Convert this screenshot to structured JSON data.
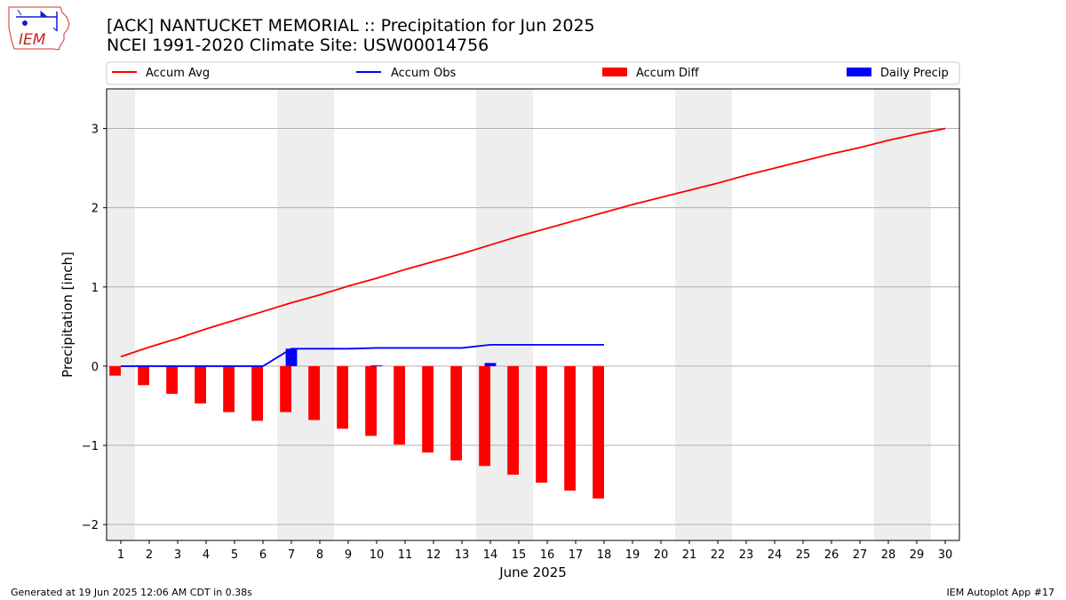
{
  "header": {
    "title_line1": "[ACK] NANTUCKET MEMORIAL :: Precipitation for Jun 2025",
    "title_line2": "NCEI 1991-2020 Climate Site: USW00014756"
  },
  "logo": {
    "text": "IEM",
    "icon": "iem-iowa-map-logo"
  },
  "footer": {
    "left": "Generated at 19 Jun 2025 12:06 AM CDT in 0.38s",
    "right": "IEM Autoplot App #17"
  },
  "colors": {
    "avg": "#ff0000",
    "obs": "#0000ff",
    "diff": "#ff0000",
    "daily": "#0000ff",
    "weekend": "#eeeeee",
    "grid": "#b0b0b0"
  },
  "chart_data": {
    "type": "bar",
    "xlabel": "June 2025",
    "ylabel": "Precipitation [inch]",
    "xlim": [
      0.5,
      30.5
    ],
    "ylim": [
      -2.2,
      3.5
    ],
    "yticks": [
      -2,
      -1,
      0,
      1,
      2,
      3
    ],
    "ytick_labels": [
      "−2",
      "−1",
      "0",
      "1",
      "2",
      "3"
    ],
    "grid": "y",
    "legend_position": "top",
    "legend": [
      "Accum Avg",
      "Accum Obs",
      "Accum Diff",
      "Daily Precip"
    ],
    "weekend_days": [
      1,
      7,
      8,
      14,
      15,
      21,
      22,
      28,
      29
    ],
    "x": [
      1,
      2,
      3,
      4,
      5,
      6,
      7,
      8,
      9,
      10,
      11,
      12,
      13,
      14,
      15,
      16,
      17,
      18,
      19,
      20,
      21,
      22,
      23,
      24,
      25,
      26,
      27,
      28,
      29,
      30
    ],
    "series": [
      {
        "name": "Accum Avg",
        "kind": "line",
        "color": "#ff0000",
        "x": [
          1,
          2,
          3,
          4,
          5,
          6,
          7,
          8,
          9,
          10,
          11,
          12,
          13,
          14,
          15,
          16,
          17,
          18,
          19,
          20,
          21,
          22,
          23,
          24,
          25,
          26,
          27,
          28,
          29,
          30
        ],
        "values": [
          0.12,
          0.24,
          0.35,
          0.47,
          0.58,
          0.69,
          0.8,
          0.9,
          1.01,
          1.11,
          1.22,
          1.32,
          1.42,
          1.53,
          1.64,
          1.74,
          1.84,
          1.94,
          2.04,
          2.13,
          2.22,
          2.31,
          2.41,
          2.5,
          2.59,
          2.68,
          2.76,
          2.85,
          2.93,
          3.0
        ]
      },
      {
        "name": "Accum Obs",
        "kind": "line",
        "color": "#0000ff",
        "x": [
          1,
          2,
          3,
          4,
          5,
          6,
          7,
          8,
          9,
          10,
          11,
          12,
          13,
          14,
          15,
          16,
          17,
          18
        ],
        "values": [
          0,
          0,
          0,
          0,
          0,
          0,
          0.22,
          0.22,
          0.22,
          0.23,
          0.23,
          0.23,
          0.23,
          0.27,
          0.27,
          0.27,
          0.27,
          0.27
        ]
      },
      {
        "name": "Accum Diff",
        "kind": "bar",
        "color": "#ff0000",
        "x": [
          1,
          2,
          3,
          4,
          5,
          6,
          7,
          8,
          9,
          10,
          11,
          12,
          13,
          14,
          15,
          16,
          17,
          18
        ],
        "values": [
          -0.12,
          -0.24,
          -0.35,
          -0.47,
          -0.58,
          -0.69,
          -0.58,
          -0.68,
          -0.79,
          -0.88,
          -0.99,
          -1.09,
          -1.19,
          -1.26,
          -1.37,
          -1.47,
          -1.57,
          -1.67
        ]
      },
      {
        "name": "Daily Precip",
        "kind": "bar",
        "color": "#0000ff",
        "x": [
          1,
          2,
          3,
          4,
          5,
          6,
          7,
          8,
          9,
          10,
          11,
          12,
          13,
          14,
          15,
          16,
          17,
          18
        ],
        "values": [
          0,
          0,
          0,
          0,
          0,
          0,
          0.22,
          0,
          0,
          0.01,
          0,
          0,
          0,
          0.04,
          0,
          0,
          0,
          0
        ]
      }
    ]
  }
}
